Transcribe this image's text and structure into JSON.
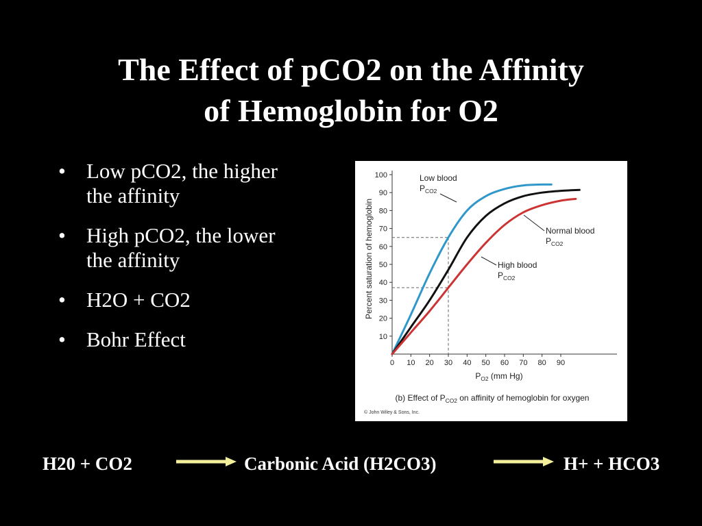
{
  "slide": {
    "title_line1": "The Effect of pCO2 on the Affinity",
    "title_line2": "of Hemoglobin for O2",
    "bullets": [
      {
        "line1": "Low pCO2, the higher",
        "line2": "the affinity"
      },
      {
        "line1": "High pCO2, the lower",
        "line2": "the affinity"
      },
      {
        "line1": "H2O + CO2",
        "line2": ""
      },
      {
        "line1": "Bohr Effect",
        "line2": ""
      }
    ],
    "bullet_glyph": "•",
    "equation": {
      "term1": "H20 + CO2",
      "term2": "Carbonic Acid (H2CO3)",
      "term3": "H+  + HCO3",
      "arrow_color": "#f3ef9a"
    }
  },
  "chart_data": {
    "type": "line",
    "ylabel": "Percent saturation of hemoglobin",
    "xlabel_main": "P",
    "xlabel_sub": "O2",
    "xlabel_unit": "(mm Hg)",
    "x_ticks": [
      0,
      10,
      20,
      30,
      40,
      50,
      60,
      70,
      80,
      90
    ],
    "y_ticks": [
      10,
      20,
      30,
      40,
      50,
      60,
      70,
      80,
      90,
      100
    ],
    "xlim": [
      0,
      120
    ],
    "ylim": [
      0,
      100
    ],
    "caption_pre": "(b) Effect of P",
    "caption_sub": "CO2",
    "caption_post": "on affinity of hemoglobin for oxygen",
    "copyright": "© John Wiley & Sons, Inc.",
    "reference_lines": [
      {
        "x": 30,
        "y": 65,
        "color": "#666666"
      },
      {
        "x": 30,
        "y": 37,
        "color": "#666666"
      }
    ],
    "series": [
      {
        "name_line1": "Low blood",
        "name_main": "P",
        "name_sub": "CO2",
        "color": "#2f97c9",
        "x": [
          0,
          10,
          20,
          30,
          40,
          50,
          60,
          70,
          80,
          85
        ],
        "y": [
          0,
          22,
          45,
          65,
          80,
          88,
          92,
          94,
          94.5,
          94.5
        ]
      },
      {
        "name_line1": "Normal blood",
        "name_main": "P",
        "name_sub": "CO2",
        "color": "#111111",
        "x": [
          0,
          10,
          20,
          30,
          40,
          50,
          60,
          70,
          80,
          90,
          100
        ],
        "y": [
          0,
          15,
          30,
          47,
          65,
          77,
          84,
          88,
          90,
          91,
          91.5
        ]
      },
      {
        "name_line1": "High blood",
        "name_main": "P",
        "name_sub": "CO2",
        "color": "#cc3333",
        "x": [
          0,
          10,
          20,
          30,
          40,
          50,
          60,
          70,
          80,
          90,
          98
        ],
        "y": [
          0,
          12,
          24,
          37,
          50,
          62,
          72,
          79,
          83,
          85.5,
          86.5
        ]
      }
    ]
  }
}
